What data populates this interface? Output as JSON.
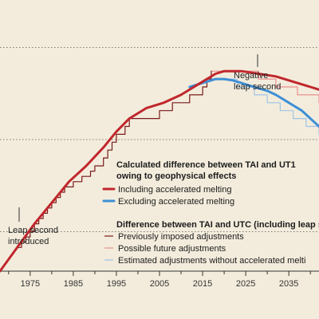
{
  "chart_data": {
    "type": "line",
    "xlim": [
      1968,
      2042
    ],
    "x_ticks": [
      1975,
      1985,
      1995,
      2005,
      2015,
      2025,
      2035
    ],
    "x_tick_labels": [
      "1975",
      "1985",
      "1995",
      "2005",
      "2015",
      "2025",
      "2035"
    ],
    "ylim": [
      0,
      1
    ],
    "grid_y": [
      0.15,
      0.5,
      0.85
    ],
    "grid": true,
    "series": [
      {
        "name": "Including accelerated melting",
        "color": "#c0272d",
        "style": "thick",
        "x": [
          1968,
          1972,
          1976,
          1980,
          1984,
          1988,
          1992,
          1995,
          1998,
          2002,
          2006,
          2010,
          2014,
          2018,
          2020,
          2024,
          2028,
          2032,
          2036,
          2040,
          2042
        ],
        "y": [
          0.0,
          0.09,
          0.18,
          0.26,
          0.34,
          0.4,
          0.47,
          0.53,
          0.58,
          0.62,
          0.64,
          0.67,
          0.71,
          0.75,
          0.76,
          0.76,
          0.75,
          0.74,
          0.72,
          0.7,
          0.69
        ]
      },
      {
        "name": "Excluding accelerated melting",
        "color": "#3d8fd6",
        "style": "thick",
        "x": [
          2012,
          2014,
          2016,
          2018,
          2020,
          2022,
          2024,
          2026,
          2028,
          2030,
          2032,
          2034,
          2036,
          2038,
          2040,
          2042
        ],
        "y": [
          0.7,
          0.71,
          0.72,
          0.73,
          0.73,
          0.725,
          0.715,
          0.705,
          0.695,
          0.685,
          0.67,
          0.65,
          0.63,
          0.61,
          0.58,
          0.55
        ]
      },
      {
        "name": "Previously imposed adjustments",
        "color": "#7a1a1a",
        "style": "step",
        "x": [
          1972,
          1973,
          1974,
          1975,
          1976,
          1977,
          1978,
          1979,
          1980,
          1981,
          1982,
          1983,
          1985,
          1987,
          1989,
          1990,
          1992,
          1993,
          1994,
          1995,
          1997,
          1998,
          2005,
          2008,
          2012,
          2015,
          2016,
          2017
        ],
        "y": [
          0.09,
          0.11,
          0.13,
          0.15,
          0.18,
          0.2,
          0.22,
          0.24,
          0.26,
          0.28,
          0.3,
          0.32,
          0.34,
          0.36,
          0.38,
          0.4,
          0.43,
          0.46,
          0.49,
          0.52,
          0.55,
          0.58,
          0.61,
          0.64,
          0.67,
          0.7,
          0.73,
          0.76
        ]
      },
      {
        "name": "Possible future adjustments",
        "color": "#e8908f",
        "style": "step",
        "x": [
          2017,
          2028,
          2032,
          2037,
          2042
        ],
        "y": [
          0.76,
          0.73,
          0.7,
          0.67,
          0.64
        ]
      },
      {
        "name": "Estimated adjustments without accelerated melting",
        "color": "#9fc4e6",
        "style": "step",
        "x": [
          2017,
          2023,
          2027,
          2030,
          2033,
          2036,
          2039,
          2042
        ],
        "y": [
          0.73,
          0.7,
          0.67,
          0.64,
          0.61,
          0.58,
          0.55,
          0.52
        ]
      }
    ],
    "annotations": {
      "negative_leap": [
        "Negative",
        "leap second"
      ],
      "leap_intro": [
        "Leap second",
        "introduced"
      ]
    },
    "legend": {
      "group1_title": [
        "Calculated difference between TAI and UT1",
        "owing to geophysical effects"
      ],
      "group1_items": [
        "Including accelerated melting",
        "Excluding accelerated melting"
      ],
      "group2_title": "Difference between TAI and UTC (including leap se",
      "group2_items": [
        "Previously imposed adjustments",
        "Possible future adjustments",
        "Estimated adjustments without accelerated melti"
      ]
    }
  }
}
